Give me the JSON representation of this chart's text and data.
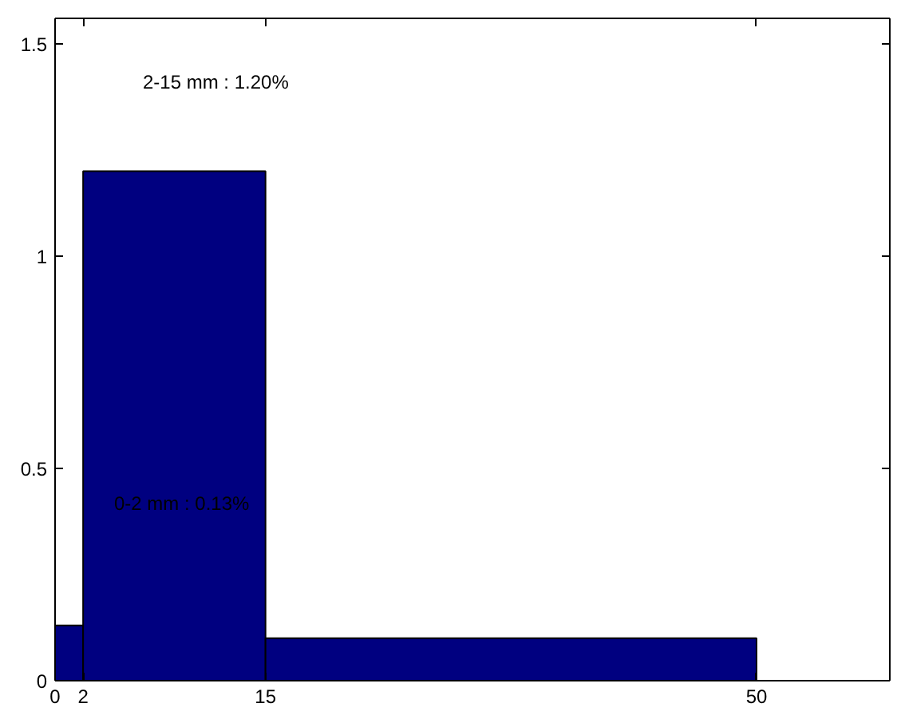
{
  "chart_data": {
    "type": "histogram",
    "bins": [
      0,
      2,
      15,
      50
    ],
    "values": [
      0.13,
      1.2,
      0.1
    ],
    "color": "#000080",
    "xlim": [
      0,
      59.5
    ],
    "ylim": [
      0,
      1.56
    ],
    "xticks": [
      0,
      2,
      15,
      50
    ],
    "yticks": [
      0,
      0.5,
      1,
      1.5
    ],
    "grid": false,
    "annotations": [
      "2-15 mm : 1.20%",
      "0-2 mm : 0.13%"
    ]
  }
}
